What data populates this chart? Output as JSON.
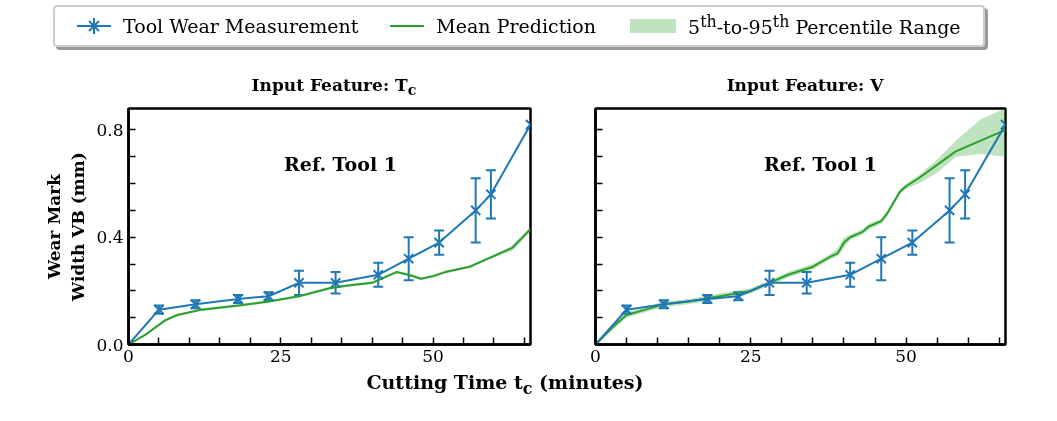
{
  "chart_data": [
    {
      "type": "line",
      "title": "Input Feature: T$_{c}$",
      "xlabel": "Cutting Time t$_{c}$ (minutes)",
      "ylabel": "Wear Mark\nWidth VB (mm)",
      "annotations": [
        "Ref. Tool 1",
        "5$^{th}$-to-95$^{th}$ Percentile Range"
      ],
      "legend": "top",
      "marker": "cross",
      "grid": false,
      "xlim": [
        0,
        66
      ],
      "ylim": [
        0,
        0.88
      ],
      "xticks": [
        0,
        {
          "value": 5,
          "label": null
        },
        {
          "value": 10,
          "label": null
        },
        {
          "value": 15,
          "label": null
        },
        {
          "value": 20,
          "label": null
        },
        25,
        {
          "value": 30,
          "label": null
        },
        {
          "value": 35,
          "label": null
        },
        {
          "value": 40,
          "label": null
        },
        {
          "value": 45,
          "label": null
        },
        50,
        {
          "value": 55,
          "label": null
        },
        {
          "value": 60,
          "label": null
        },
        {
          "value": 65,
          "label": null
        }
      ],
      "yticks": [
        {
          "value": 0,
          "label": "0.0"
        },
        {
          "value": 0.1,
          "label": null
        },
        {
          "value": 0.2,
          "label": null
        },
        {
          "value": 0.3,
          "label": null
        },
        {
          "value": 0.4,
          "label": "0.4"
        },
        {
          "value": 0.5,
          "label": null
        },
        {
          "value": 0.6,
          "label": null
        },
        {
          "value": 0.7,
          "label": null
        },
        {
          "value": 0.8,
          "label": "0.8"
        }
      ],
      "series": [
        {
          "name": "Tool Wear Measurement",
          "type": "line",
          "color": "#1f77b4",
          "x": [
            0,
            5,
            11,
            18,
            23,
            28,
            34,
            41,
            46,
            51,
            57,
            59.5,
            66
          ],
          "values": [
            0,
            0.13,
            0.15,
            0.17,
            0.18,
            0.23,
            0.23,
            0.26,
            0.32,
            0.38,
            0.5,
            0.56,
            0.82
          ],
          "errors": [
            null,
            0.015,
            0.015,
            0.015,
            0.015,
            0.045,
            0.04,
            0.045,
            0.08,
            0.045,
            0.12,
            0.09,
            null
          ]
        },
        {
          "name": "Mean Prediction",
          "type": "line",
          "marker": "none",
          "color": "#2ca02c",
          "x": [
            0,
            3,
            6,
            8,
            12,
            18,
            23,
            28,
            33,
            36,
            40,
            42,
            44,
            46,
            48,
            50,
            52,
            56,
            58,
            60,
            63,
            66
          ],
          "values": [
            0,
            0.04,
            0.09,
            0.11,
            0.13,
            0.145,
            0.16,
            0.18,
            0.21,
            0.22,
            0.23,
            0.25,
            0.27,
            0.26,
            0.245,
            0.255,
            0.27,
            0.29,
            0.31,
            0.33,
            0.36,
            0.43
          ],
          "lower": [
            0,
            0.035,
            0.085,
            0.105,
            0.125,
            0.14,
            0.155,
            0.175,
            0.205,
            0.215,
            0.225,
            0.245,
            0.265,
            0.255,
            0.24,
            0.25,
            0.265,
            0.285,
            0.305,
            0.325,
            0.35,
            0.42
          ],
          "upper": [
            0,
            0.045,
            0.095,
            0.115,
            0.135,
            0.15,
            0.165,
            0.185,
            0.215,
            0.225,
            0.235,
            0.255,
            0.275,
            0.265,
            0.25,
            0.26,
            0.275,
            0.295,
            0.315,
            0.335,
            0.37,
            0.44
          ]
        }
      ]
    },
    {
      "type": "line",
      "title": "Input Feature: V",
      "annotations": [
        "Ref. Tool 1"
      ],
      "marker": "cross",
      "grid": false,
      "tick_labels": "x",
      "xlim": [
        0,
        66
      ],
      "ylim": [
        0,
        0.88
      ],
      "xticks": [
        0,
        {
          "value": 5,
          "label": null
        },
        {
          "value": 10,
          "label": null
        },
        {
          "value": 15,
          "label": null
        },
        {
          "value": 20,
          "label": null
        },
        25,
        {
          "value": 30,
          "label": null
        },
        {
          "value": 35,
          "label": null
        },
        {
          "value": 40,
          "label": null
        },
        {
          "value": 45,
          "label": null
        },
        50,
        {
          "value": 55,
          "label": null
        },
        {
          "value": 60,
          "label": null
        },
        {
          "value": 65,
          "label": null
        }
      ],
      "yticks": [
        {
          "value": 0,
          "label": null
        },
        {
          "value": 0.1,
          "label": null
        },
        {
          "value": 0.2,
          "label": null
        },
        {
          "value": 0.3,
          "label": null
        },
        {
          "value": 0.4,
          "label": null
        },
        {
          "value": 0.5,
          "label": null
        },
        {
          "value": 0.6,
          "label": null
        },
        {
          "value": 0.7,
          "label": null
        },
        {
          "value": 0.8,
          "label": null
        }
      ],
      "series": [
        {
          "type": "line",
          "color": "#1f77b4",
          "x": [
            0,
            5,
            11,
            18,
            23,
            28,
            34,
            41,
            46,
            51,
            57,
            59.5,
            66
          ],
          "values": [
            0,
            0.13,
            0.15,
            0.17,
            0.18,
            0.23,
            0.23,
            0.26,
            0.32,
            0.38,
            0.5,
            0.56,
            0.82
          ],
          "errors": [
            null,
            0.015,
            0.015,
            0.015,
            0.015,
            0.045,
            0.04,
            0.045,
            0.08,
            0.045,
            0.12,
            0.09,
            null
          ]
        },
        {
          "type": "line",
          "marker": "none",
          "color": "#2ca02c",
          "x": [
            0,
            3,
            5,
            8,
            11,
            15,
            20,
            25,
            28,
            31,
            35,
            38,
            39,
            40,
            41,
            43,
            44,
            46,
            47,
            48,
            49,
            50,
            52,
            55,
            58,
            62,
            66
          ],
          "values": [
            0,
            0.07,
            0.11,
            0.13,
            0.15,
            0.16,
            0.18,
            0.2,
            0.23,
            0.26,
            0.29,
            0.33,
            0.34,
            0.38,
            0.4,
            0.42,
            0.44,
            0.46,
            0.49,
            0.53,
            0.57,
            0.59,
            0.62,
            0.67,
            0.72,
            0.76,
            0.8
          ],
          "lower": [
            0,
            0.06,
            0.1,
            0.12,
            0.14,
            0.15,
            0.17,
            0.19,
            0.22,
            0.25,
            0.28,
            0.32,
            0.33,
            0.36,
            0.39,
            0.41,
            0.43,
            0.45,
            0.48,
            0.52,
            0.56,
            0.58,
            0.6,
            0.64,
            0.7,
            0.71,
            0.7
          ],
          "upper": [
            0,
            0.08,
            0.12,
            0.14,
            0.16,
            0.17,
            0.19,
            0.21,
            0.24,
            0.27,
            0.3,
            0.34,
            0.36,
            0.4,
            0.41,
            0.43,
            0.45,
            0.47,
            0.5,
            0.54,
            0.58,
            0.6,
            0.63,
            0.69,
            0.76,
            0.84,
            0.88
          ]
        }
      ]
    }
  ]
}
